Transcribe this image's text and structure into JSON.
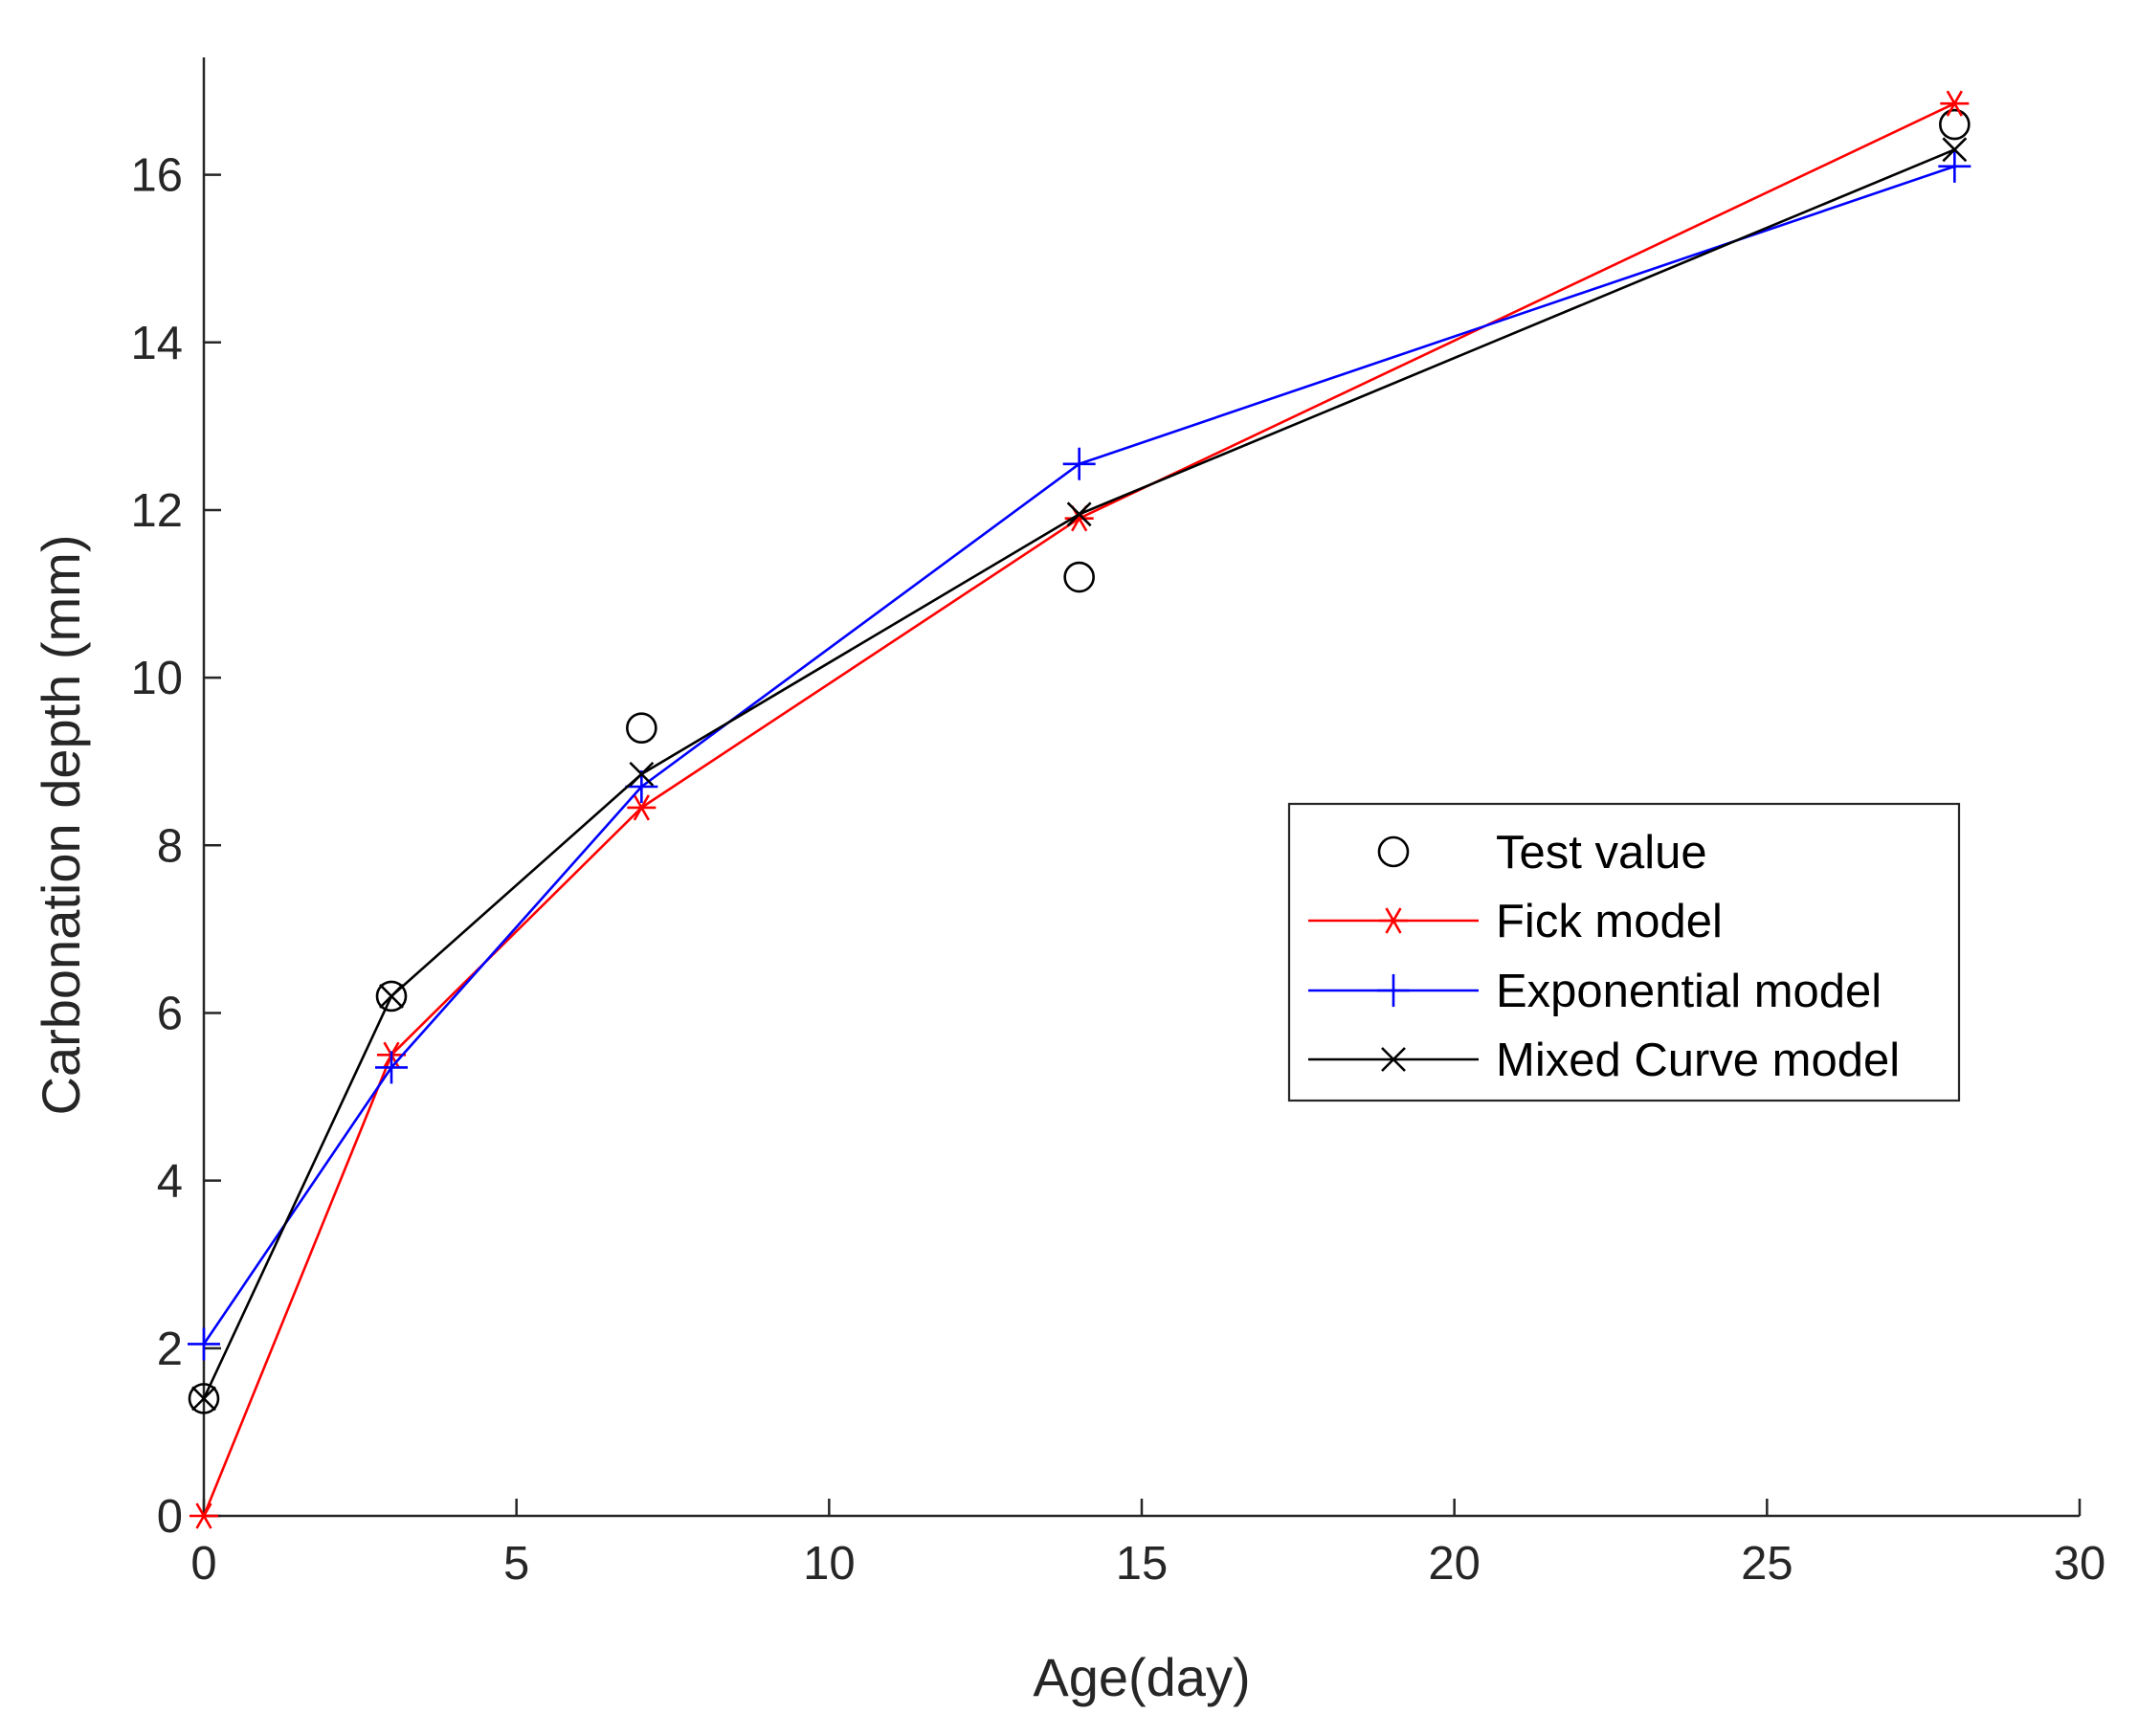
{
  "chart_data": {
    "type": "line",
    "title": "",
    "xlabel": "Age(day)",
    "ylabel": "Carbonation depth (mm)",
    "xlim": [
      0,
      30
    ],
    "ylim": [
      0,
      17.4
    ],
    "x_ticks": [
      0,
      5,
      10,
      15,
      20,
      25,
      30
    ],
    "y_ticks": [
      0,
      2,
      4,
      6,
      8,
      10,
      12,
      14,
      16
    ],
    "grid": false,
    "legend_position": "center-right",
    "series": [
      {
        "name": "Test value",
        "marker": "circle",
        "line": false,
        "color": "#000000",
        "x": [
          0,
          3,
          7,
          14,
          28
        ],
        "y": [
          1.4,
          6.2,
          9.4,
          11.2,
          16.6
        ]
      },
      {
        "name": "Fick model",
        "marker": "asterisk",
        "line": true,
        "color": "#ff0000",
        "x": [
          0,
          3,
          7,
          14,
          28
        ],
        "y": [
          0,
          5.5,
          8.45,
          11.9,
          16.85
        ]
      },
      {
        "name": "Exponential model",
        "marker": "plus",
        "line": true,
        "color": "#0000ff",
        "x": [
          0,
          3,
          7,
          14,
          28
        ],
        "y": [
          2.05,
          5.35,
          8.7,
          12.55,
          16.1
        ]
      },
      {
        "name": "Mixed Curve model",
        "marker": "x",
        "line": true,
        "color": "#000000",
        "x": [
          0,
          3,
          7,
          14,
          28
        ],
        "y": [
          1.4,
          6.2,
          8.85,
          11.95,
          16.3
        ]
      }
    ]
  }
}
